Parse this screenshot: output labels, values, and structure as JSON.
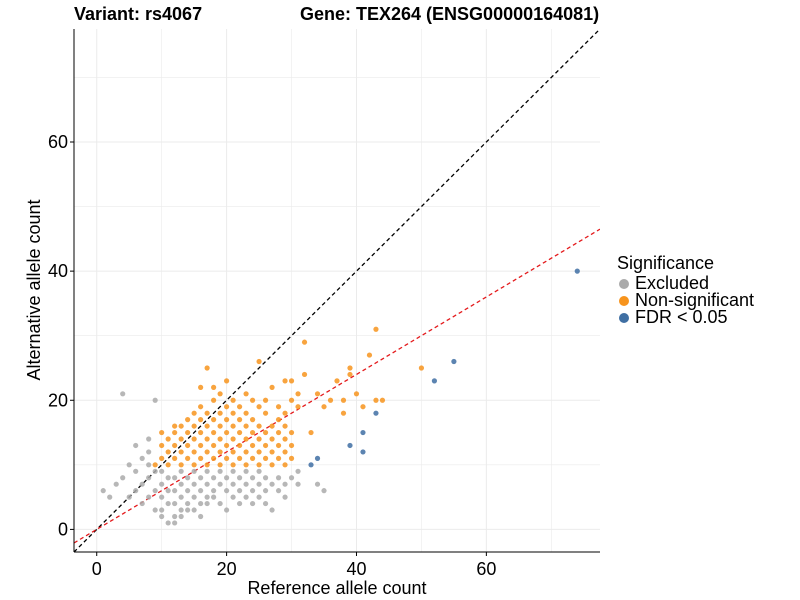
{
  "chart_data": {
    "type": "scatter",
    "title_left": "Variant: rs4067",
    "title_right": "Gene: TEX264 (ENSG00000164081)",
    "xlabel": "Reference allele count",
    "ylabel": "Alternative allele count",
    "xlim": [
      -3.5,
      77.5
    ],
    "ylim": [
      -3.5,
      77.5
    ],
    "xticks": [
      0,
      20,
      40,
      60
    ],
    "yticks": [
      0,
      20,
      40,
      60
    ],
    "grid": true,
    "legend": {
      "title": "Significance",
      "position": "right",
      "entries": [
        {
          "label": "Excluded",
          "color": "#aaaaaa"
        },
        {
          "label": "Non-significant",
          "color": "#f7941d"
        },
        {
          "label": "FDR < 0.05",
          "color": "#3f6fa3"
        }
      ]
    },
    "reference_lines": [
      {
        "name": "identity",
        "slope": 1,
        "intercept": 0,
        "color": "#000000",
        "style": "dashed"
      },
      {
        "name": "fit",
        "slope": 0.6,
        "intercept": 0,
        "color": "#e41a1c",
        "style": "dashed"
      }
    ],
    "series": [
      {
        "name": "Excluded",
        "color": "#aaaaaa",
        "points": [
          [
            1,
            6
          ],
          [
            2,
            5
          ],
          [
            3,
            7
          ],
          [
            4,
            21
          ],
          [
            4,
            8
          ],
          [
            5,
            10
          ],
          [
            5,
            5
          ],
          [
            6,
            13
          ],
          [
            6,
            9
          ],
          [
            6,
            6
          ],
          [
            7,
            7
          ],
          [
            7,
            11
          ],
          [
            7,
            4
          ],
          [
            8,
            10
          ],
          [
            8,
            8
          ],
          [
            8,
            12
          ],
          [
            8,
            14
          ],
          [
            8,
            5
          ],
          [
            9,
            20
          ],
          [
            9,
            9
          ],
          [
            9,
            6
          ],
          [
            9,
            3
          ],
          [
            10,
            3
          ],
          [
            10,
            5
          ],
          [
            10,
            7
          ],
          [
            10,
            9
          ],
          [
            10,
            2
          ],
          [
            11,
            4
          ],
          [
            11,
            6
          ],
          [
            11,
            8
          ],
          [
            11,
            1
          ],
          [
            12,
            2
          ],
          [
            12,
            4
          ],
          [
            12,
            6
          ],
          [
            12,
            8
          ],
          [
            12,
            1
          ],
          [
            13,
            3
          ],
          [
            13,
            5
          ],
          [
            13,
            7
          ],
          [
            13,
            9
          ],
          [
            13,
            2
          ],
          [
            14,
            4
          ],
          [
            14,
            6
          ],
          [
            14,
            8
          ],
          [
            14,
            3
          ],
          [
            15,
            5
          ],
          [
            15,
            7
          ],
          [
            15,
            9
          ],
          [
            15,
            3
          ],
          [
            16,
            4
          ],
          [
            16,
            6
          ],
          [
            16,
            8
          ],
          [
            16,
            2
          ],
          [
            17,
            5
          ],
          [
            17,
            7
          ],
          [
            17,
            9
          ],
          [
            17,
            4
          ],
          [
            18,
            6
          ],
          [
            18,
            8
          ],
          [
            18,
            5
          ],
          [
            19,
            7
          ],
          [
            19,
            9
          ],
          [
            19,
            4
          ],
          [
            20,
            6
          ],
          [
            20,
            8
          ],
          [
            20,
            3
          ],
          [
            21,
            5
          ],
          [
            21,
            7
          ],
          [
            21,
            9
          ],
          [
            22,
            6
          ],
          [
            22,
            8
          ],
          [
            22,
            4
          ],
          [
            23,
            5
          ],
          [
            23,
            7
          ],
          [
            23,
            9
          ],
          [
            24,
            6
          ],
          [
            24,
            8
          ],
          [
            24,
            4
          ],
          [
            25,
            5
          ],
          [
            25,
            7
          ],
          [
            25,
            9
          ],
          [
            26,
            4
          ],
          [
            26,
            6
          ],
          [
            26,
            8
          ],
          [
            27,
            7
          ],
          [
            27,
            3
          ],
          [
            28,
            6
          ],
          [
            28,
            8
          ],
          [
            29,
            7
          ],
          [
            29,
            5
          ],
          [
            30,
            8
          ],
          [
            31,
            9
          ],
          [
            31,
            7
          ],
          [
            34,
            7
          ],
          [
            35,
            6
          ]
        ]
      },
      {
        "name": "Non-significant",
        "color": "#f7941d",
        "points": [
          [
            9,
            10
          ],
          [
            10,
            11
          ],
          [
            10,
            13
          ],
          [
            10,
            15
          ],
          [
            11,
            10
          ],
          [
            11,
            12
          ],
          [
            11,
            14
          ],
          [
            12,
            11
          ],
          [
            12,
            13
          ],
          [
            12,
            15
          ],
          [
            12,
            16
          ],
          [
            13,
            10
          ],
          [
            13,
            12
          ],
          [
            13,
            14
          ],
          [
            13,
            16
          ],
          [
            14,
            11
          ],
          [
            14,
            13
          ],
          [
            14,
            15
          ],
          [
            14,
            17
          ],
          [
            15,
            10
          ],
          [
            15,
            12
          ],
          [
            15,
            14
          ],
          [
            15,
            16
          ],
          [
            15,
            18
          ],
          [
            16,
            11
          ],
          [
            16,
            13
          ],
          [
            16,
            15
          ],
          [
            16,
            17
          ],
          [
            16,
            19
          ],
          [
            16,
            22
          ],
          [
            17,
            10
          ],
          [
            17,
            12
          ],
          [
            17,
            14
          ],
          [
            17,
            16
          ],
          [
            17,
            18
          ],
          [
            17,
            25
          ],
          [
            18,
            11
          ],
          [
            18,
            13
          ],
          [
            18,
            15
          ],
          [
            18,
            17
          ],
          [
            18,
            20
          ],
          [
            18,
            22
          ],
          [
            19,
            10
          ],
          [
            19,
            12
          ],
          [
            19,
            14
          ],
          [
            19,
            16
          ],
          [
            19,
            18
          ],
          [
            19,
            21
          ],
          [
            20,
            11
          ],
          [
            20,
            13
          ],
          [
            20,
            15
          ],
          [
            20,
            17
          ],
          [
            20,
            19
          ],
          [
            20,
            23
          ],
          [
            21,
            10
          ],
          [
            21,
            12
          ],
          [
            21,
            14
          ],
          [
            21,
            16
          ],
          [
            21,
            18
          ],
          [
            21,
            20
          ],
          [
            22,
            11
          ],
          [
            22,
            13
          ],
          [
            22,
            15
          ],
          [
            22,
            17
          ],
          [
            22,
            19
          ],
          [
            23,
            10
          ],
          [
            23,
            12
          ],
          [
            23,
            14
          ],
          [
            23,
            16
          ],
          [
            23,
            18
          ],
          [
            23,
            21
          ],
          [
            24,
            11
          ],
          [
            24,
            13
          ],
          [
            24,
            15
          ],
          [
            24,
            17
          ],
          [
            24,
            20
          ],
          [
            25,
            10
          ],
          [
            25,
            12
          ],
          [
            25,
            14
          ],
          [
            25,
            16
          ],
          [
            25,
            19
          ],
          [
            25,
            26
          ],
          [
            26,
            11
          ],
          [
            26,
            13
          ],
          [
            26,
            15
          ],
          [
            26,
            18
          ],
          [
            26,
            20
          ],
          [
            27,
            10
          ],
          [
            27,
            12
          ],
          [
            27,
            14
          ],
          [
            27,
            16
          ],
          [
            27,
            22
          ],
          [
            28,
            11
          ],
          [
            28,
            13
          ],
          [
            28,
            15
          ],
          [
            28,
            17
          ],
          [
            28,
            19
          ],
          [
            29,
            10
          ],
          [
            29,
            12
          ],
          [
            29,
            14
          ],
          [
            29,
            16
          ],
          [
            29,
            18
          ],
          [
            29,
            23
          ],
          [
            30,
            11
          ],
          [
            30,
            13
          ],
          [
            30,
            15
          ],
          [
            30,
            20
          ],
          [
            30,
            23
          ],
          [
            31,
            19
          ],
          [
            31,
            21
          ],
          [
            32,
            24
          ],
          [
            32,
            29
          ],
          [
            33,
            15
          ],
          [
            34,
            21
          ],
          [
            35,
            19
          ],
          [
            36,
            20
          ],
          [
            37,
            23
          ],
          [
            38,
            20
          ],
          [
            38,
            18
          ],
          [
            39,
            24
          ],
          [
            39,
            25
          ],
          [
            40,
            21
          ],
          [
            41,
            19
          ],
          [
            42,
            27
          ],
          [
            43,
            31
          ],
          [
            43,
            20
          ],
          [
            44,
            20
          ],
          [
            50,
            25
          ]
        ]
      },
      {
        "name": "FDR < 0.05",
        "color": "#3f6fa3",
        "points": [
          [
            33,
            10
          ],
          [
            34,
            11
          ],
          [
            39,
            13
          ],
          [
            41,
            15
          ],
          [
            41,
            12
          ],
          [
            43,
            18
          ],
          [
            52,
            23
          ],
          [
            55,
            26
          ],
          [
            74,
            40
          ]
        ]
      }
    ]
  }
}
